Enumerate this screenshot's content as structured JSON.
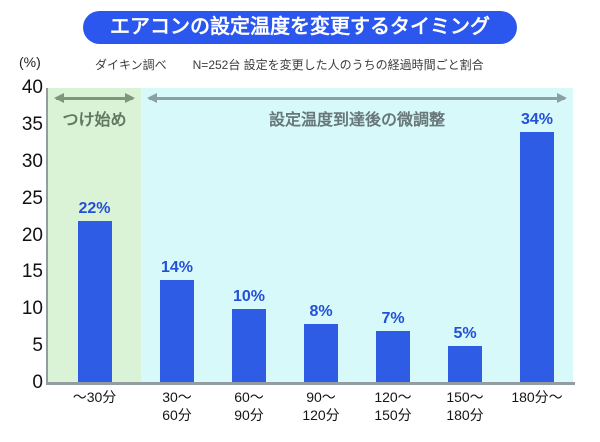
{
  "title": "エアコンの設定温度を変更するタイミング",
  "source_note": {
    "y_unit": "(%)",
    "source": "ダイキン調べ",
    "note": "N=252台 設定を変更した人のうちの経過時間ごと割合"
  },
  "regions": [
    {
      "label": "つけ始め"
    },
    {
      "label": "設定温度到達後の微調整"
    }
  ],
  "colors": {
    "bar": "#2e5ce4",
    "title_bg": "#2b57ef",
    "value_label": "#2350d8",
    "region_green_bg": "#daf2d6",
    "region_cyan_bg": "#d7f9fa",
    "green_text": "#5f7a63",
    "cyan_text": "#68787a",
    "green_arrow": "#7e957e",
    "cyan_arrow": "#8ba0a2",
    "axis": "#939da1"
  },
  "chart_data": {
    "type": "bar",
    "title": "エアコンの設定温度を変更するタイミング",
    "subtitle": "ダイキン調べ　N=252台 設定を変更した人のうちの経過時間ごと割合",
    "categories": [
      "〜30分",
      "30〜60分",
      "60〜90分",
      "90〜120分",
      "120〜150分",
      "150〜180分",
      "180分〜"
    ],
    "category_lines": [
      [
        "〜30分"
      ],
      [
        "30〜",
        "60分"
      ],
      [
        "60〜",
        "90分"
      ],
      [
        "90〜",
        "120分"
      ],
      [
        "120〜",
        "150分"
      ],
      [
        "150〜",
        "180分"
      ],
      [
        "180分〜"
      ]
    ],
    "values": [
      22,
      14,
      10,
      8,
      7,
      5,
      34
    ],
    "data_labels": [
      "22%",
      "14%",
      "10%",
      "8%",
      "7%",
      "5%",
      "34%"
    ],
    "ylabel": "(%)",
    "yticks": [
      40,
      35,
      30,
      25,
      20,
      15,
      10,
      5,
      0
    ],
    "ylim": [
      0,
      40
    ],
    "grid": false,
    "legend": false,
    "annotations": [
      "つけ始め",
      "設定温度到達後の微調整"
    ]
  }
}
